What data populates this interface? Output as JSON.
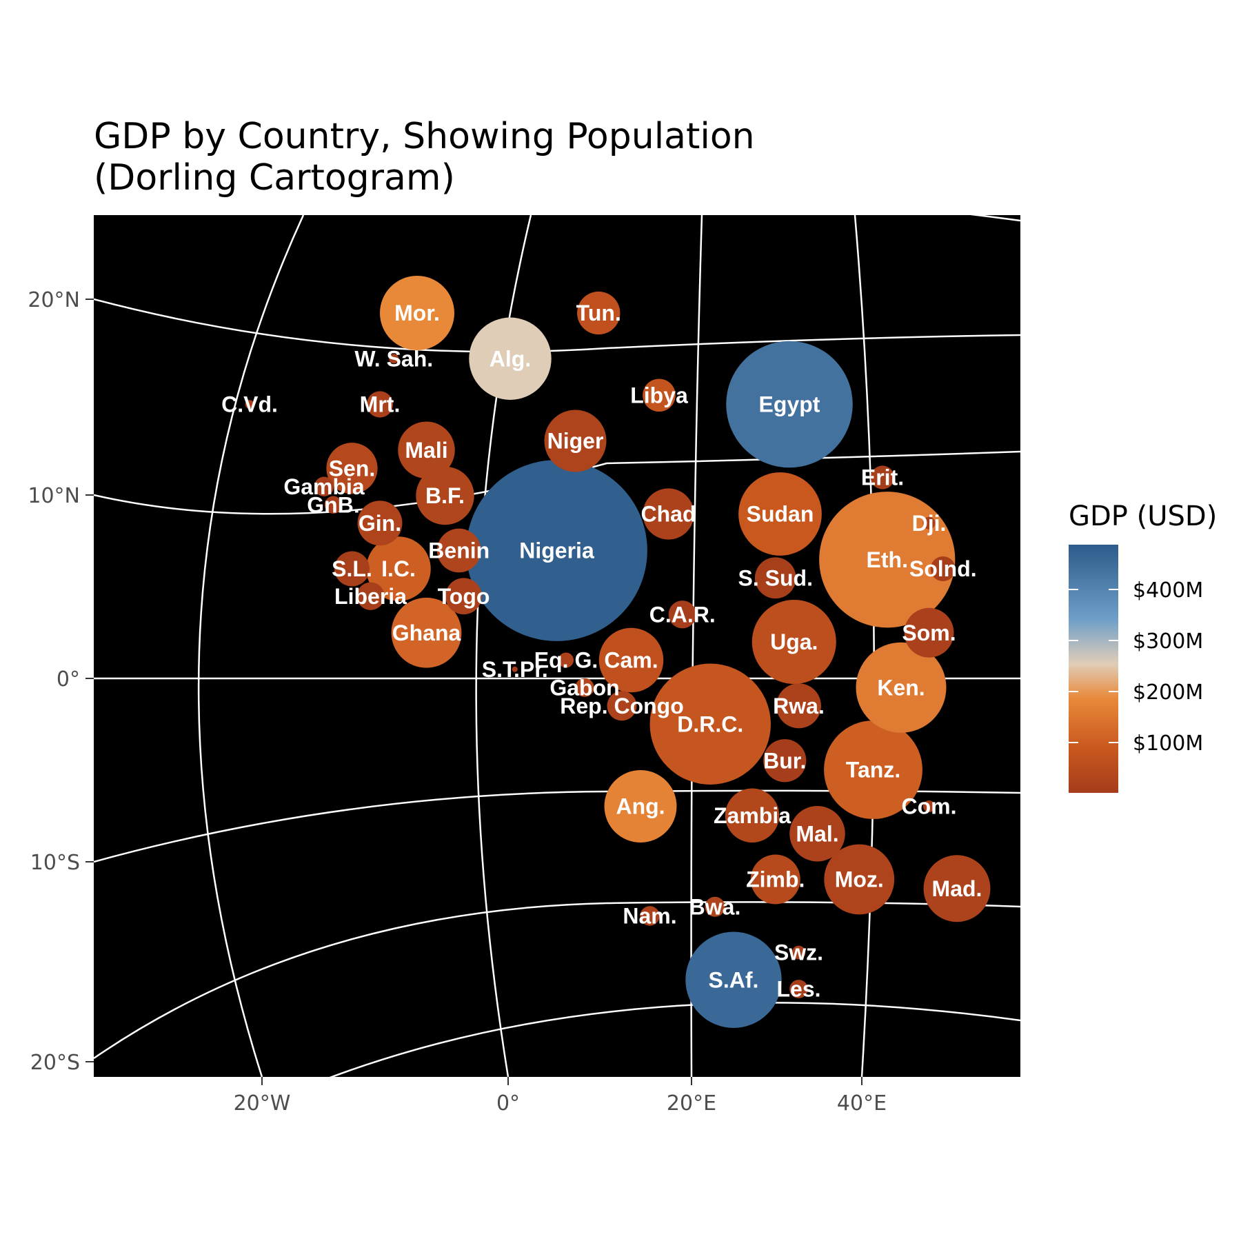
{
  "title_lines": [
    "GDP by Country, Showing Population",
    "(Dorling Cartogram)"
  ],
  "axes": {
    "x_ticks": [
      "20°W",
      "0°",
      "20°E",
      "40°E"
    ],
    "y_ticks": [
      "20°N",
      "10°N",
      "0°",
      "10°S",
      "20°S"
    ]
  },
  "legend": {
    "title": "GDP (USD)",
    "labels": [
      "$400M",
      "$300M",
      "$200M",
      "$100M"
    ],
    "colors": {
      "low": "#a53d1b",
      "mid_low": "#e8893a",
      "mid": "#e0cdb7",
      "mid_high": "#6e9fc9",
      "high": "#2d5b8a"
    }
  },
  "chart_data": {
    "type": "dorling-cartogram",
    "xlabel": "",
    "ylabel": "",
    "countries": [
      {
        "label": "Mor.",
        "lon": -10,
        "lat": 20,
        "pop_m": 36,
        "gdp_m": 130
      },
      {
        "label": "Tun.",
        "lon": 9.5,
        "lat": 20,
        "pop_m": 12,
        "gdp_m": 45
      },
      {
        "label": "W. Sah.",
        "lon": -12.5,
        "lat": 17.5,
        "pop_m": 0.6,
        "gdp_m": 1
      },
      {
        "label": "Alg.",
        "lon": 0,
        "lat": 17.5,
        "pop_m": 44,
        "gdp_m": 190
      },
      {
        "label": "C.Vd.",
        "lon": -28,
        "lat": 15,
        "pop_m": 0.5,
        "gdp_m": 2
      },
      {
        "label": "Mrt.",
        "lon": -14,
        "lat": 15,
        "pop_m": 4.5,
        "gdp_m": 9
      },
      {
        "label": "Libya",
        "lon": 16,
        "lat": 15.5,
        "pop_m": 7,
        "gdp_m": 50
      },
      {
        "label": "Egypt",
        "lon": 30,
        "lat": 15,
        "pop_m": 104,
        "gdp_m": 400
      },
      {
        "label": "Mali",
        "lon": -9,
        "lat": 12.5,
        "pop_m": 21,
        "gdp_m": 19
      },
      {
        "label": "Niger",
        "lon": 7,
        "lat": 13,
        "pop_m": 25,
        "gdp_m": 15
      },
      {
        "label": "Sen.",
        "lon": -17,
        "lat": 11.5,
        "pop_m": 17,
        "gdp_m": 27
      },
      {
        "label": "Gambia",
        "lon": -20,
        "lat": 10.5,
        "pop_m": 2.5,
        "gdp_m": 2
      },
      {
        "label": "GnB.",
        "lon": -19,
        "lat": 9.5,
        "pop_m": 2,
        "gdp_m": 1.6
      },
      {
        "label": "B.F.",
        "lon": -7,
        "lat": 10,
        "pop_m": 22,
        "gdp_m": 19
      },
      {
        "label": "Erit.",
        "lon": 40,
        "lat": 11,
        "pop_m": 3.6,
        "gdp_m": 2
      },
      {
        "label": "Gin.",
        "lon": -14,
        "lat": 8.5,
        "pop_m": 13,
        "gdp_m": 16
      },
      {
        "label": "Chad",
        "lon": 17,
        "lat": 9,
        "pop_m": 17,
        "gdp_m": 12
      },
      {
        "label": "Sudan",
        "lon": 29,
        "lat": 9,
        "pop_m": 45,
        "gdp_m": 60
      },
      {
        "label": "Dji.",
        "lon": 45,
        "lat": 8.5,
        "pop_m": 1,
        "gdp_m": 3.5
      },
      {
        "label": "Nigeria",
        "lon": 5,
        "lat": 7,
        "pop_m": 213,
        "gdp_m": 440
      },
      {
        "label": "Benin",
        "lon": -5.5,
        "lat": 7,
        "pop_m": 12.5,
        "gdp_m": 17
      },
      {
        "label": "S.L.",
        "lon": -17,
        "lat": 6,
        "pop_m": 8,
        "gdp_m": 4
      },
      {
        "label": "I.C.",
        "lon": -12,
        "lat": 6,
        "pop_m": 27,
        "gdp_m": 70
      },
      {
        "label": "S. Sud.",
        "lon": 28.5,
        "lat": 5.5,
        "pop_m": 11,
        "gdp_m": 5
      },
      {
        "label": "Eth.",
        "lon": 40.5,
        "lat": 6.5,
        "pop_m": 120,
        "gdp_m": 110
      },
      {
        "label": "Solnd.",
        "lon": 46.5,
        "lat": 6,
        "pop_m": 4,
        "gdp_m": 3
      },
      {
        "label": "Liberia",
        "lon": -15,
        "lat": 4.5,
        "pop_m": 5,
        "gdp_m": 3.5
      },
      {
        "label": "Togo",
        "lon": -5,
        "lat": 4.5,
        "pop_m": 8.6,
        "gdp_m": 8
      },
      {
        "label": "C.A.R.",
        "lon": 18.5,
        "lat": 3.5,
        "pop_m": 5,
        "gdp_m": 2.5
      },
      {
        "label": "Ghana",
        "lon": -9,
        "lat": 2.5,
        "pop_m": 32,
        "gdp_m": 77
      },
      {
        "label": "Uga.",
        "lon": 30.5,
        "lat": 2,
        "pop_m": 46,
        "gdp_m": 40
      },
      {
        "label": "Som.",
        "lon": 45,
        "lat": 2.5,
        "pop_m": 16,
        "gdp_m": 8
      },
      {
        "label": "Eq. G.",
        "lon": 6,
        "lat": 1,
        "pop_m": 1.5,
        "gdp_m": 12
      },
      {
        "label": "Cam.",
        "lon": 13,
        "lat": 1,
        "pop_m": 27,
        "gdp_m": 45
      },
      {
        "label": "S.T.Pr.",
        "lon": 0.5,
        "lat": 0.5,
        "pop_m": 0.2,
        "gdp_m": 0.5
      },
      {
        "label": "Gabon",
        "lon": 8,
        "lat": -0.5,
        "pop_m": 2.3,
        "gdp_m": 20
      },
      {
        "label": "Rep. Congo",
        "lon": 12,
        "lat": -1.5,
        "pop_m": 5.7,
        "gdp_m": 13
      },
      {
        "label": "Ken.",
        "lon": 42,
        "lat": -0.5,
        "pop_m": 53,
        "gdp_m": 110
      },
      {
        "label": "D.R.C.",
        "lon": 21.5,
        "lat": -2.5,
        "pop_m": 95,
        "gdp_m": 55
      },
      {
        "label": "Rwa.",
        "lon": 31,
        "lat": -1.5,
        "pop_m": 13,
        "gdp_m": 11
      },
      {
        "label": "Bur.",
        "lon": 29.5,
        "lat": -4.5,
        "pop_m": 12,
        "gdp_m": 3
      },
      {
        "label": "Tanz.",
        "lon": 39,
        "lat": -5,
        "pop_m": 63,
        "gdp_m": 70
      },
      {
        "label": "Com.",
        "lon": 45,
        "lat": -7,
        "pop_m": 0.9,
        "gdp_m": 1.2
      },
      {
        "label": "Ang.",
        "lon": 14,
        "lat": -7,
        "pop_m": 34,
        "gdp_m": 120
      },
      {
        "label": "Zambia",
        "lon": 26,
        "lat": -7.5,
        "pop_m": 19,
        "gdp_m": 22
      },
      {
        "label": "Mal.",
        "lon": 33,
        "lat": -8.5,
        "pop_m": 20,
        "gdp_m": 12
      },
      {
        "label": "Zimb.",
        "lon": 28.5,
        "lat": -11,
        "pop_m": 16,
        "gdp_m": 28
      },
      {
        "label": "Moz.",
        "lon": 37.5,
        "lat": -11,
        "pop_m": 32,
        "gdp_m": 16
      },
      {
        "label": "Mad.",
        "lon": 48,
        "lat": -11.5,
        "pop_m": 29,
        "gdp_m": 14
      },
      {
        "label": "Nam.",
        "lon": 15,
        "lat": -13,
        "pop_m": 2.5,
        "gdp_m": 12
      },
      {
        "label": "Bwa.",
        "lon": 22,
        "lat": -12.5,
        "pop_m": 2.6,
        "gdp_m": 17
      },
      {
        "label": "S.Af.",
        "lon": 24,
        "lat": -16.5,
        "pop_m": 60,
        "gdp_m": 420
      },
      {
        "label": "Swz.",
        "lon": 31,
        "lat": -15,
        "pop_m": 1.2,
        "gdp_m": 4.5
      },
      {
        "label": "Les.",
        "lon": 31,
        "lat": -17,
        "pop_m": 2.2,
        "gdp_m": 2.5
      }
    ]
  }
}
